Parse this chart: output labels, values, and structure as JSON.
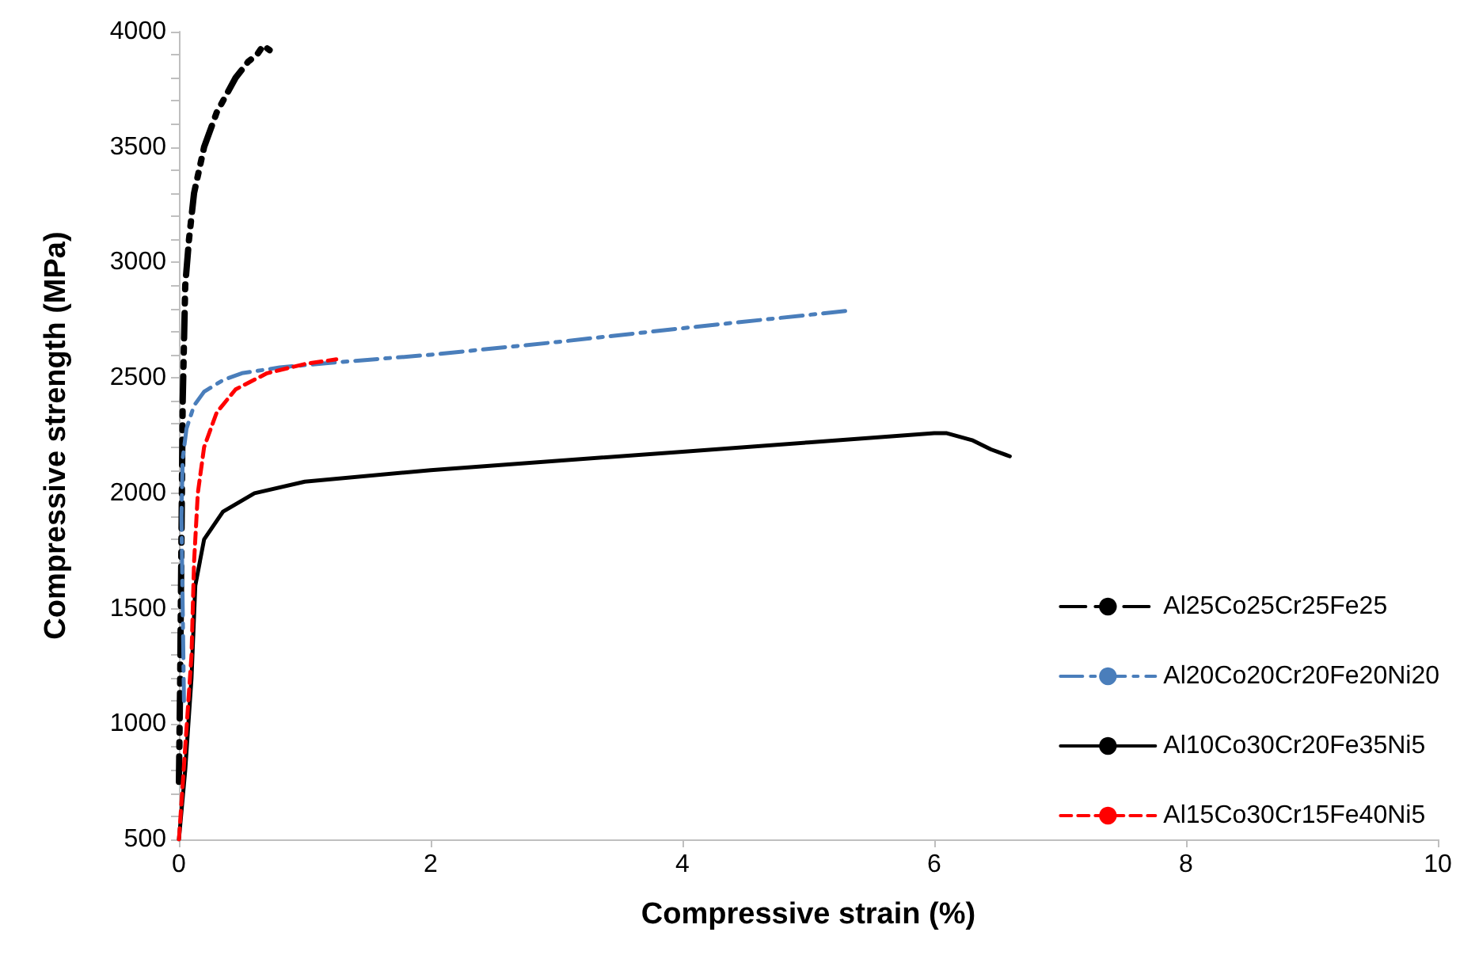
{
  "chart_data": {
    "type": "line",
    "xlabel": "Compressive strain (%)",
    "ylabel": "Compressive strength (MPa)",
    "xlim": [
      0,
      10
    ],
    "xticks": [
      0,
      2,
      4,
      6,
      8,
      10
    ],
    "ylim": [
      500,
      4000
    ],
    "yticks": [
      500,
      {
        "value": 600,
        "label": null
      },
      {
        "value": 700,
        "label": null
      },
      {
        "value": 800,
        "label": null
      },
      {
        "value": 900,
        "label": null
      },
      1000,
      {
        "value": 1100,
        "label": null
      },
      {
        "value": 1200,
        "label": null
      },
      {
        "value": 1300,
        "label": null
      },
      {
        "value": 1400,
        "label": null
      },
      1500,
      {
        "value": 1600,
        "label": null
      },
      {
        "value": 1700,
        "label": null
      },
      {
        "value": 1800,
        "label": null
      },
      {
        "value": 1900,
        "label": null
      },
      2000,
      {
        "value": 2100,
        "label": null
      },
      {
        "value": 2200,
        "label": null
      },
      {
        "value": 2300,
        "label": null
      },
      {
        "value": 2400,
        "label": null
      },
      2500,
      {
        "value": 2600,
        "label": null
      },
      {
        "value": 2700,
        "label": null
      },
      {
        "value": 2800,
        "label": null
      },
      {
        "value": 2900,
        "label": null
      },
      3000,
      {
        "value": 3100,
        "label": null
      },
      {
        "value": 3200,
        "label": null
      },
      {
        "value": 3300,
        "label": null
      },
      {
        "value": 3400,
        "label": null
      },
      3500,
      {
        "value": 3600,
        "label": null
      },
      {
        "value": 3700,
        "label": null
      },
      {
        "value": 3800,
        "label": null
      },
      {
        "value": 3900,
        "label": null
      },
      4000
    ],
    "grid": false,
    "legend": "right",
    "marker": "none",
    "series": [
      {
        "name": "Al25Co25Cr25Fe25",
        "color": "#000000",
        "line_style": "dashdotdot",
        "x": [
          0,
          0.01,
          0.02,
          0.03,
          0.05,
          0.08,
          0.12,
          0.2,
          0.3,
          0.45,
          0.55,
          0.62,
          0.67,
          0.72
        ],
        "values": [
          750,
          1200,
          1800,
          2400,
          2900,
          3100,
          3300,
          3500,
          3650,
          3800,
          3870,
          3900,
          3940,
          3920
        ]
      },
      {
        "name": "Al20Co20Cr20Fe20Ni20",
        "color": "#4a7ebb",
        "line_style": "dashdot",
        "x": [
          0.04,
          0.03,
          0.02,
          0.03,
          0.06,
          0.12,
          0.2,
          0.35,
          0.5,
          0.8,
          1.2,
          2,
          3,
          4,
          5.3
        ],
        "values": [
          1100,
          1500,
          1900,
          2150,
          2280,
          2380,
          2440,
          2490,
          2520,
          2545,
          2565,
          2600,
          2655,
          2715,
          2790
        ]
      },
      {
        "name": "Al10Co30Cr20Fe35Ni5",
        "color": "#000000",
        "line_style": "solid",
        "x": [
          0,
          0.05,
          0.1,
          0.13,
          0.2,
          0.35,
          0.6,
          1,
          2,
          3,
          4,
          5,
          6,
          6.1,
          6.3,
          6.45,
          6.6
        ],
        "values": [
          500,
          800,
          1200,
          1600,
          1800,
          1920,
          2000,
          2050,
          2100,
          2140,
          2180,
          2220,
          2260,
          2260,
          2230,
          2190,
          2160
        ]
      },
      {
        "name": "Al15Co30Cr15Fe40Ni5",
        "color": "#ff0000",
        "line_style": "dashed",
        "x": [
          0,
          0.05,
          0.1,
          0.12,
          0.15,
          0.2,
          0.3,
          0.45,
          0.7,
          1.0,
          1.25
        ],
        "values": [
          500,
          900,
          1300,
          1700,
          2000,
          2200,
          2350,
          2450,
          2520,
          2560,
          2580
        ]
      }
    ]
  }
}
